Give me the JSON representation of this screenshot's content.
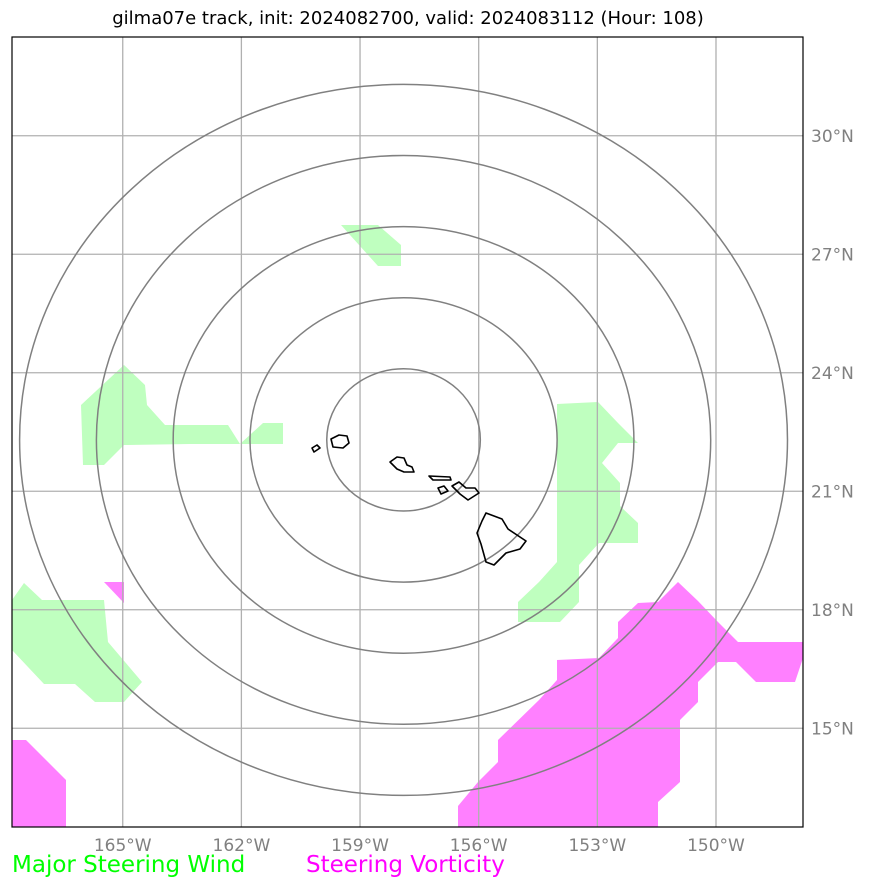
{
  "title": "gilma07e track, init: 2024082700, valid: 2024083112 (Hour: 108)",
  "map": {
    "lon_range": [
      -167.8,
      -147.8
    ],
    "lat_range": [
      12.5,
      32.5
    ],
    "lon_ticks": [
      {
        "value": -165,
        "label": "165°W"
      },
      {
        "value": -162,
        "label": "162°W"
      },
      {
        "value": -159,
        "label": "159°W"
      },
      {
        "value": -156,
        "label": "156°W"
      },
      {
        "value": -153,
        "label": "153°W"
      },
      {
        "value": -150,
        "label": "150°W"
      }
    ],
    "lat_ticks": [
      {
        "value": 15,
        "label": "15°N"
      },
      {
        "value": 18,
        "label": "18°N"
      },
      {
        "value": 21,
        "label": "21°N"
      },
      {
        "value": 24,
        "label": "24°N"
      },
      {
        "value": 27,
        "label": "27°N"
      },
      {
        "value": 30,
        "label": "30°N"
      }
    ],
    "range_rings_center": {
      "lon": -157.9,
      "lat": 22.3
    },
    "range_rings_count": 5,
    "colors": {
      "gridline": "#b0b0b0",
      "ring": "#808080",
      "wind": "#bfffbf",
      "vorticity": "#ff80ff",
      "coast": "#000000"
    }
  },
  "legend": {
    "wind_label": "Major Steering Wind",
    "wind_color": "#00ff00",
    "vorticity_label": "Steering Vorticity",
    "vorticity_color": "#ff00ff"
  }
}
